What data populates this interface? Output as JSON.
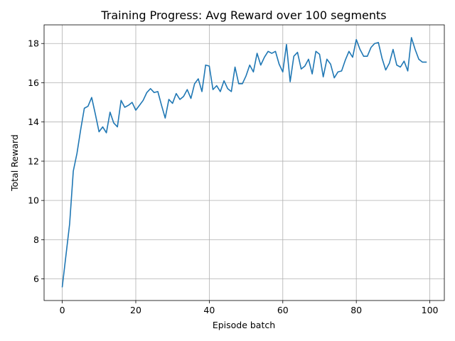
{
  "chart_data": {
    "type": "line",
    "title": "Training Progress: Avg Reward over 100 segments",
    "xlabel": "Episode batch",
    "ylabel": "Total Reward",
    "xlim": [
      -4.95,
      103.95
    ],
    "ylim": [
      4.9,
      18.95
    ],
    "xticks": [
      0,
      20,
      40,
      60,
      80,
      100
    ],
    "yticks": [
      6,
      8,
      10,
      12,
      14,
      16,
      18
    ],
    "grid": true,
    "legend": "none",
    "colors": {
      "series": "#1f77b4"
    },
    "series": [
      {
        "x": [
          0,
          1,
          2,
          3,
          4,
          5,
          6,
          7,
          8,
          9,
          10,
          11,
          12,
          13,
          14,
          15,
          16,
          17,
          18,
          19,
          20,
          21,
          22,
          23,
          24,
          25,
          26,
          27,
          28,
          29,
          30,
          31,
          32,
          33,
          34,
          35,
          36,
          37,
          38,
          39,
          40,
          41,
          42,
          43,
          44,
          45,
          46,
          47,
          48,
          49,
          50,
          51,
          52,
          53,
          54,
          55,
          56,
          57,
          58,
          59,
          60,
          61,
          62,
          63,
          64,
          65,
          66,
          67,
          68,
          69,
          70,
          71,
          72,
          73,
          74,
          75,
          76,
          77,
          78,
          79,
          80,
          81,
          82,
          83,
          84,
          85,
          86,
          87,
          88,
          89,
          90,
          91,
          92,
          93,
          94,
          95,
          96,
          97,
          98,
          99
        ],
        "values": [
          5.6,
          7.2,
          8.8,
          11.5,
          12.4,
          13.6,
          14.7,
          14.8,
          15.25,
          14.4,
          13.5,
          13.75,
          13.45,
          14.5,
          13.95,
          13.75,
          15.1,
          14.75,
          14.85,
          15.0,
          14.6,
          14.85,
          15.1,
          15.5,
          15.7,
          15.5,
          15.55,
          14.85,
          14.2,
          15.15,
          14.95,
          15.45,
          15.15,
          15.3,
          15.65,
          15.2,
          15.95,
          16.2,
          15.55,
          16.9,
          16.85,
          15.65,
          15.85,
          15.55,
          16.1,
          15.7,
          15.55,
          16.8,
          15.95,
          15.95,
          16.35,
          16.9,
          16.55,
          17.5,
          16.9,
          17.3,
          17.6,
          17.5,
          17.6,
          16.95,
          16.55,
          17.95,
          16.05,
          17.35,
          17.55,
          16.7,
          16.85,
          17.2,
          16.45,
          17.6,
          17.45,
          16.3,
          17.2,
          16.95,
          16.25,
          16.55,
          16.6,
          17.15,
          17.6,
          17.3,
          18.2,
          17.7,
          17.35,
          17.35,
          17.8,
          18.0,
          18.05,
          17.25,
          16.65,
          17.0,
          17.7,
          16.9,
          16.8,
          17.1,
          16.6,
          18.3,
          17.7,
          17.2,
          17.05,
          17.05
        ]
      }
    ]
  }
}
